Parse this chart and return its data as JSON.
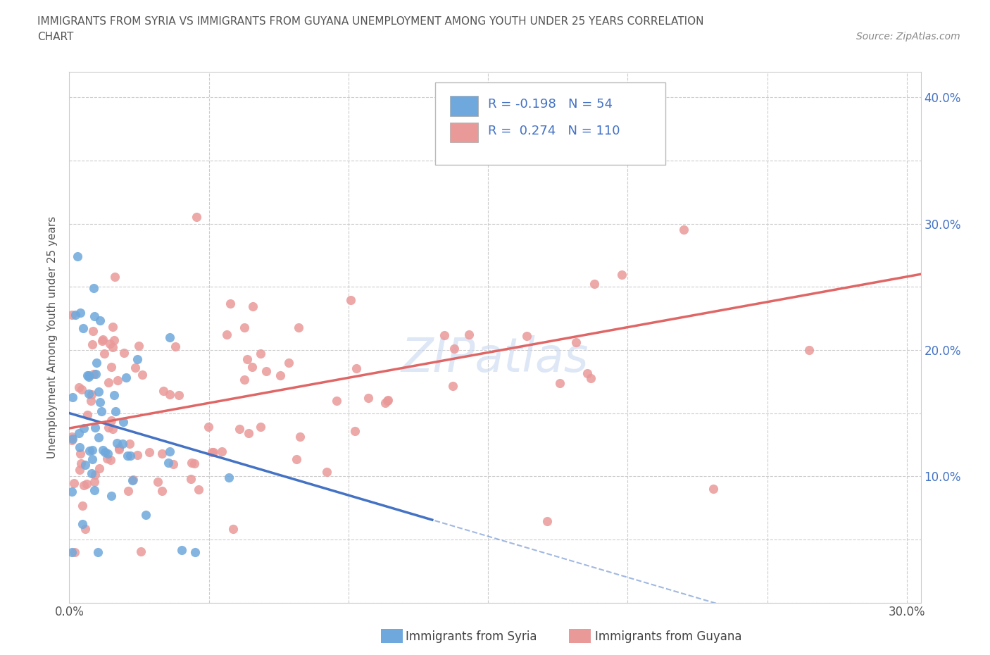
{
  "title_line1": "IMMIGRANTS FROM SYRIA VS IMMIGRANTS FROM GUYANA UNEMPLOYMENT AMONG YOUTH UNDER 25 YEARS CORRELATION",
  "title_line2": "CHART",
  "source": "Source: ZipAtlas.com",
  "ylabel": "Unemployment Among Youth under 25 years",
  "xlim": [
    0.0,
    0.305
  ],
  "ylim": [
    0.0,
    0.42
  ],
  "xticks": [
    0.0,
    0.05,
    0.1,
    0.15,
    0.2,
    0.25,
    0.3
  ],
  "xtick_labels": [
    "0.0%",
    "",
    "",
    "",
    "",
    "",
    "30.0%"
  ],
  "yticks": [
    0.0,
    0.05,
    0.1,
    0.15,
    0.2,
    0.25,
    0.3,
    0.35,
    0.4
  ],
  "ytick_labels_right": [
    "",
    "",
    "10.0%",
    "",
    "20.0%",
    "",
    "30.0%",
    "",
    "40.0%"
  ],
  "syria_color": "#6fa8dc",
  "guyana_color": "#ea9999",
  "syria_R": -0.198,
  "syria_N": 54,
  "guyana_R": 0.274,
  "guyana_N": 110,
  "syria_line_color": "#4472c4",
  "guyana_line_color": "#e06666",
  "watermark": "ZIPatlas",
  "background_color": "#ffffff",
  "grid_color": "#cccccc",
  "legend_text_color": "#4472c4",
  "title_color": "#555555",
  "source_color": "#888888"
}
